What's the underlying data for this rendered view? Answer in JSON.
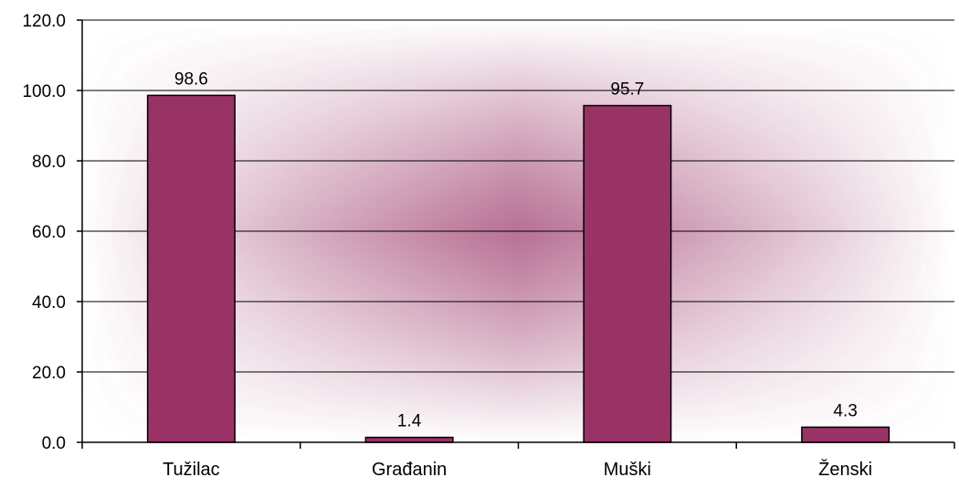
{
  "chart_data": {
    "type": "bar",
    "categories": [
      "Tužilac",
      "Građanin",
      "Muški",
      "Ženski"
    ],
    "values": [
      98.6,
      1.4,
      95.7,
      4.3
    ],
    "value_labels": [
      "98.6",
      "1.4",
      "95.7",
      "4.3"
    ],
    "y_ticks": [
      "0.0",
      "20.0",
      "40.0",
      "60.0",
      "80.0",
      "100.0",
      "120.0"
    ],
    "y_tick_values": [
      0,
      20,
      40,
      60,
      80,
      100,
      120
    ],
    "ylim": [
      0,
      120
    ],
    "grid": true,
    "legend": "none",
    "colors": {
      "bar": "#993366",
      "bar_stroke": "#000000",
      "plot_glow": "#993366",
      "gridline": "#000000",
      "axis": "#000000"
    }
  }
}
